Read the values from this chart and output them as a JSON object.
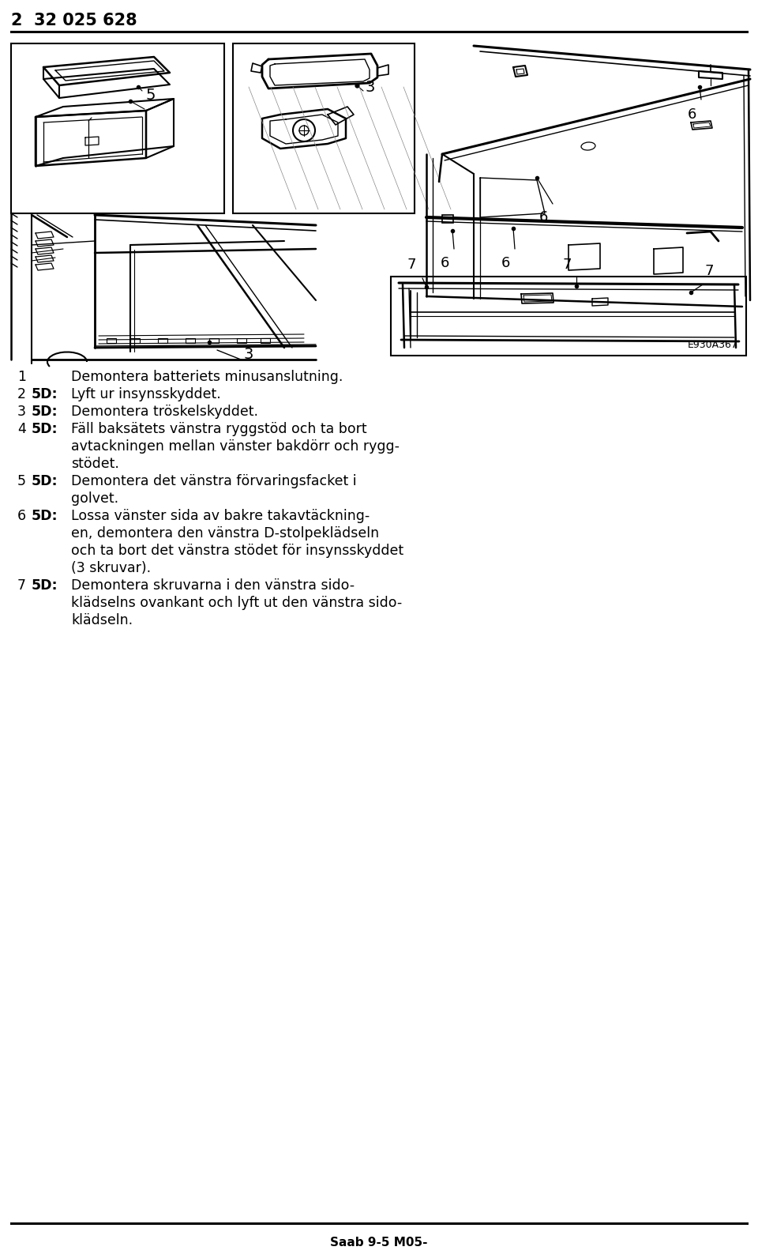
{
  "header_text": "2  32 025 628",
  "footer_text": "Saab 9-5 M05-",
  "diagram_ref": "E930A367",
  "background_color": "#ffffff",
  "text_color": "#000000",
  "fig_width": 9.6,
  "fig_height": 15.92,
  "instructions": [
    [
      "1",
      "",
      "Demontera batteriets minusanslutning."
    ],
    [
      "2",
      "5D:",
      "Lyft ur insynsskyddet."
    ],
    [
      "3",
      "5D:",
      "Demontera tröskelskyddet."
    ],
    [
      "4",
      "5D:",
      "Fäll baksätets vänstra ryggstöd och ta bort avtackningen"
    ],
    [
      "",
      "",
      "mellan vänster bakdörr och rygg-"
    ],
    [
      "",
      "",
      "stödet."
    ],
    [
      "5",
      "5D:",
      "Demontera det vänstra förvaringsfacket i"
    ],
    [
      "",
      "",
      "golvet."
    ],
    [
      "6",
      "5D:",
      "Lossa vänster sida av bakre takavtäckning-"
    ],
    [
      "",
      "",
      "en, demontera den vänstra D-stolpeklädseln"
    ],
    [
      "",
      "",
      "och ta bort det vänstra stödet för insynsskyddet"
    ],
    [
      "",
      "",
      "(3 skruvar)."
    ],
    [
      "7",
      "5D:",
      "Demontera skruvarna i den vänstra sido-"
    ],
    [
      "",
      "",
      "klädselns ovankant och lyft ut den vänstra sido-"
    ],
    [
      "",
      "",
      "klädseln."
    ]
  ]
}
